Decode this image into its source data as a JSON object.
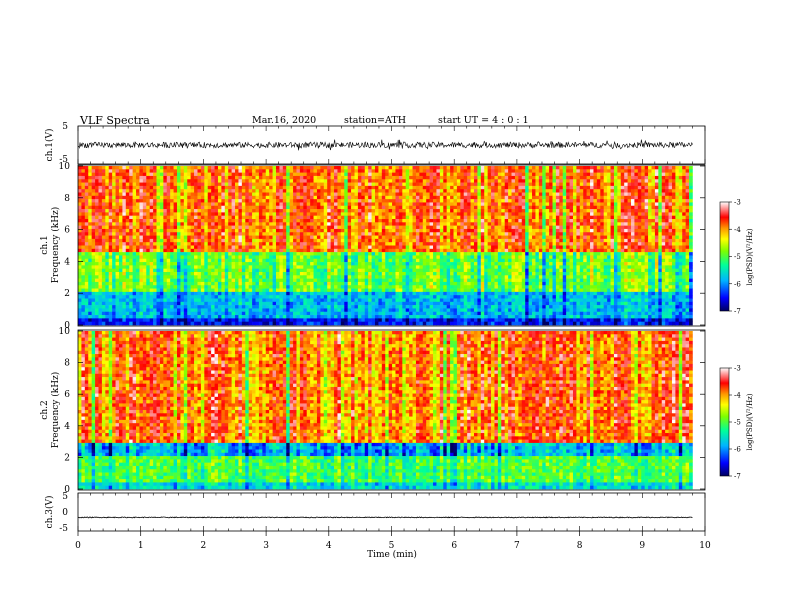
{
  "header": {
    "title": "VLF  Spectra",
    "date": "Mar.16, 2020",
    "station": "station=ATH",
    "start": "start  UT  =   4  : 0   : 1"
  },
  "colors": {
    "spectrum": [
      "#000060",
      "#0000ff",
      "#00b4ff",
      "#00ff9a",
      "#7dff00",
      "#ffff00",
      "#ff9600",
      "#ff0000",
      "#ffffff"
    ]
  },
  "chart_data": [
    {
      "type": "line",
      "panel": "ch1-waveform",
      "ylabel": "ch.1(V)",
      "ylim": [
        -5,
        5
      ],
      "yticks": [
        "5",
        "-5"
      ],
      "xlim": [
        0,
        10
      ],
      "description_range": "signal oscillates roughly between -1 and +1 V with spikes up to about 1.5 V",
      "values_approx": {
        "mean": 0.0,
        "min": -1.5,
        "max": 1.5
      }
    },
    {
      "type": "heatmap",
      "panel": "ch1-spectrogram",
      "ylabel": "ch.1\nFrequency  (kHz)",
      "ylabel_line1": "ch.1",
      "ylabel_line2": "Frequency  (kHz)",
      "ylim": [
        0,
        10
      ],
      "yticks": [
        "0",
        "2",
        "4",
        "6",
        "8",
        "10"
      ],
      "xlim": [
        0,
        10
      ],
      "colorbar": {
        "label": "log(PSD)(V²/Hz)",
        "ticks": [
          "-3",
          "-4",
          "-5",
          "-6",
          "-7"
        ],
        "range": [
          -7,
          -3
        ]
      },
      "bands_kHz": [
        {
          "from": 0.0,
          "to": 0.5,
          "level": -6.5
        },
        {
          "from": 0.5,
          "to": 2.0,
          "level": -5.8
        },
        {
          "from": 2.0,
          "to": 4.5,
          "level": -4.9
        },
        {
          "from": 4.5,
          "to": 10.0,
          "level": -3.8
        }
      ]
    },
    {
      "type": "heatmap",
      "panel": "ch2-spectrogram",
      "ylabel": "ch.2\nFrequency  (kHz)",
      "ylabel_line1": "ch.2",
      "ylabel_line2": "Frequency  (kHz)",
      "ylim": [
        0,
        10
      ],
      "yticks": [
        "0",
        "2",
        "4",
        "6",
        "8",
        "10"
      ],
      "xlim": [
        0,
        10
      ],
      "colorbar": {
        "label": "log(PSD)(V²/Hz)",
        "ticks": [
          "-3",
          "-4",
          "-5",
          "-6",
          "-7"
        ],
        "range": [
          -7,
          -3
        ]
      },
      "bands_kHz": [
        {
          "from": 0.0,
          "to": 0.5,
          "level": -5.6
        },
        {
          "from": 0.5,
          "to": 2.0,
          "level": -5.0
        },
        {
          "from": 2.0,
          "to": 3.0,
          "level": -5.8
        },
        {
          "from": 3.0,
          "to": 10.0,
          "level": -3.8
        }
      ]
    },
    {
      "type": "line",
      "panel": "ch3-waveform",
      "ylabel": "ch.3(V)",
      "ylim": [
        -5,
        5
      ],
      "yticks": [
        "5",
        "0",
        "-5"
      ],
      "xlim": [
        0,
        10
      ],
      "values_approx": {
        "mean": -1.5,
        "min": -1.8,
        "max": -1.2
      }
    }
  ],
  "xaxis": {
    "label": "Time  (min)",
    "ticks": [
      "0",
      "1",
      "2",
      "3",
      "4",
      "5",
      "6",
      "7",
      "8",
      "9",
      "10"
    ],
    "data_end_min": 9.8
  }
}
